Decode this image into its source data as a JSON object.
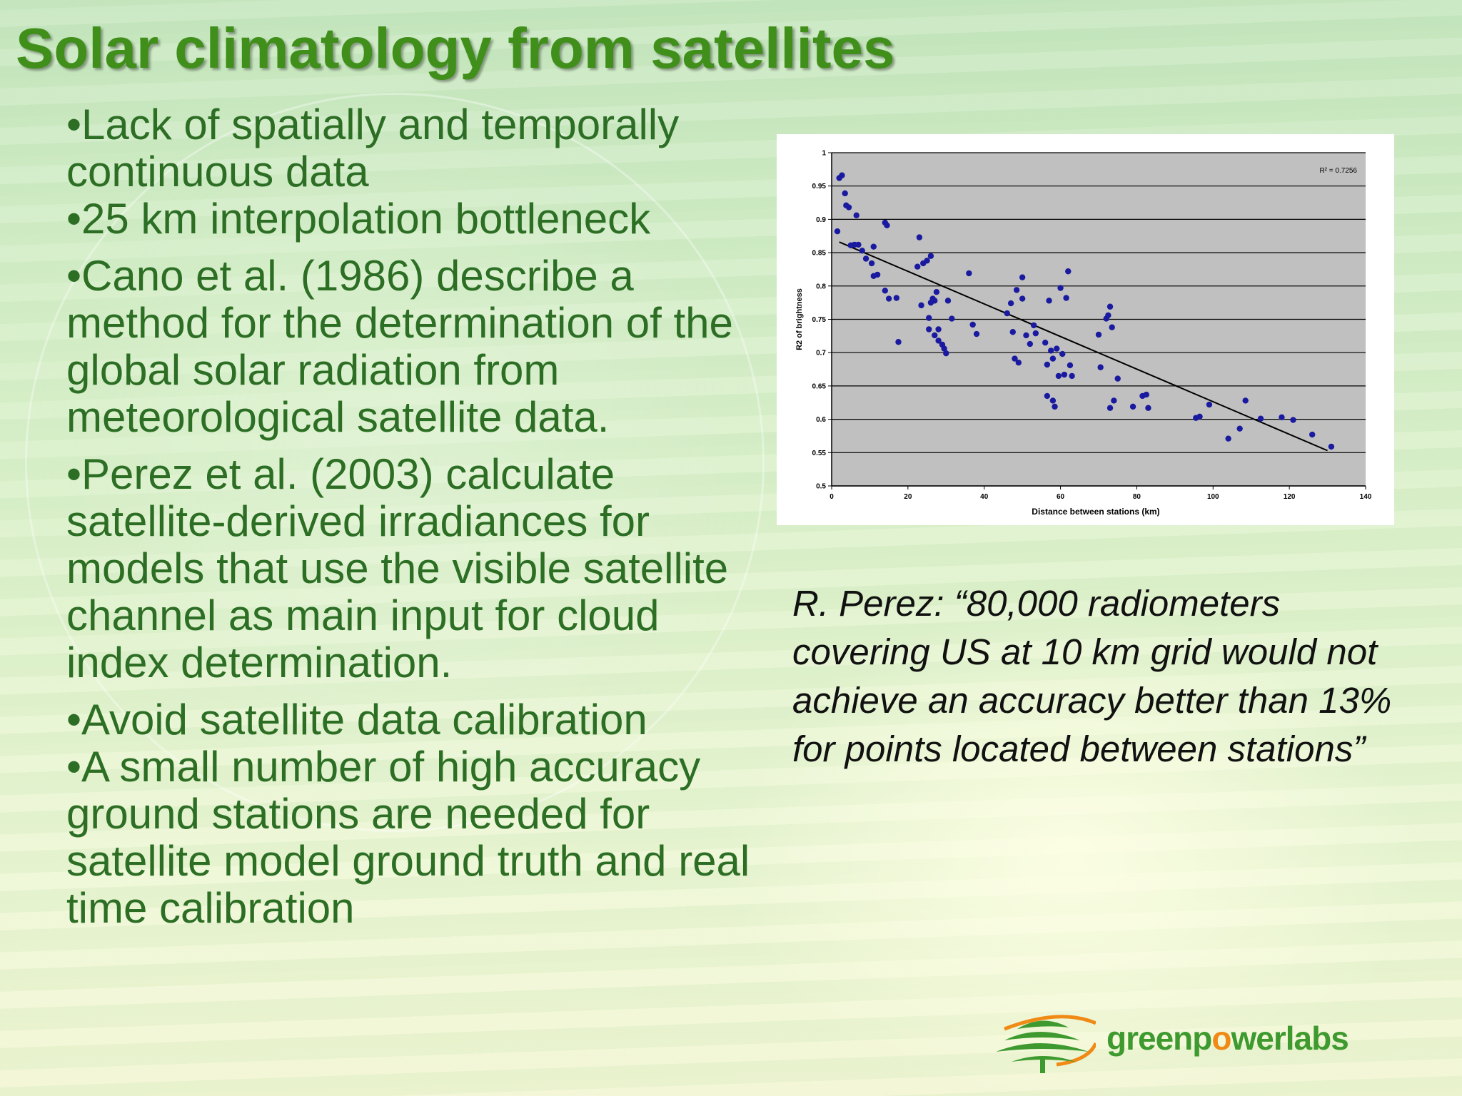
{
  "slide": {
    "title": "Solar climatology from satellites",
    "bullets": [
      "•Lack of spatially and temporally continuous data",
      "•25 km interpolation bottleneck",
      "•Cano et al. (1986) describe a method for the determination of the global solar radiation from meteorological satellite data.",
      "•Perez et al. (2003) calculate satellite-derived irradiances for models that use the visible satellite channel as main input for cloud index determination.",
      "•Avoid satellite data calibration",
      "•A small number of high accuracy ground stations are needed for satellite model ground truth and real time calibration"
    ],
    "quote": "R. Perez: “80,000 radiometers covering US at 10 km grid would not achieve an accuracy better than 13% for points located between stations”",
    "logo": {
      "part1": "greenp",
      "o": "o",
      "part2": "werlabs",
      "icon": "cedar-tree-logo-icon",
      "colors": {
        "green": "#3e9a2f",
        "orange": "#f08a16"
      }
    }
  },
  "chart_data": {
    "type": "scatter",
    "xlabel": "Distance between stations (km)",
    "ylabel": "R2 of brightness",
    "xlim": [
      0,
      140
    ],
    "ylim": [
      0.5,
      1
    ],
    "xticks": [
      "0",
      "20",
      "40",
      "60",
      "80",
      "100",
      "120",
      "140"
    ],
    "yticks": [
      "0.5",
      "0.55",
      "0.6",
      "0.65",
      "0.7",
      "0.75",
      "0.8",
      "0.85",
      "0.9",
      "0.95",
      "1"
    ],
    "annotation": "R² = 0.7256",
    "grid": true,
    "plot_bg": "#c0c0c0",
    "marker_color": "#1a1aa0",
    "trendline": {
      "x": [
        2,
        130
      ],
      "y": [
        0.866,
        0.553
      ]
    },
    "points": [
      [
        1.5,
        0.882
      ],
      [
        2,
        0.962
      ],
      [
        2.7,
        0.966
      ],
      [
        3.5,
        0.939
      ],
      [
        3.8,
        0.921
      ],
      [
        4.5,
        0.918
      ],
      [
        5,
        0.861
      ],
      [
        6,
        0.862
      ],
      [
        6.5,
        0.906
      ],
      [
        7,
        0.862
      ],
      [
        8,
        0.853
      ],
      [
        9,
        0.841
      ],
      [
        11,
        0.859
      ],
      [
        10.5,
        0.834
      ],
      [
        11,
        0.815
      ],
      [
        12,
        0.817
      ],
      [
        14,
        0.895
      ],
      [
        14.5,
        0.891
      ],
      [
        14,
        0.793
      ],
      [
        15,
        0.781
      ],
      [
        17,
        0.782
      ],
      [
        17.5,
        0.716
      ],
      [
        22.5,
        0.829
      ],
      [
        23,
        0.873
      ],
      [
        23.5,
        0.771
      ],
      [
        24,
        0.834
      ],
      [
        25,
        0.838
      ],
      [
        25.5,
        0.752
      ],
      [
        25.5,
        0.735
      ],
      [
        26,
        0.845
      ],
      [
        26,
        0.775
      ],
      [
        26.5,
        0.781
      ],
      [
        27,
        0.778
      ],
      [
        27.5,
        0.791
      ],
      [
        27,
        0.726
      ],
      [
        28,
        0.735
      ],
      [
        28,
        0.718
      ],
      [
        29,
        0.712
      ],
      [
        29.5,
        0.706
      ],
      [
        30,
        0.699
      ],
      [
        30.5,
        0.778
      ],
      [
        31.5,
        0.751
      ],
      [
        36,
        0.819
      ],
      [
        37,
        0.742
      ],
      [
        38,
        0.728
      ],
      [
        46,
        0.759
      ],
      [
        47,
        0.774
      ],
      [
        47.5,
        0.731
      ],
      [
        48,
        0.691
      ],
      [
        48.5,
        0.794
      ],
      [
        49,
        0.685
      ],
      [
        50,
        0.813
      ],
      [
        50,
        0.781
      ],
      [
        51,
        0.726
      ],
      [
        52,
        0.713
      ],
      [
        53,
        0.741
      ],
      [
        53.5,
        0.729
      ],
      [
        56,
        0.715
      ],
      [
        56.5,
        0.682
      ],
      [
        57,
        0.778
      ],
      [
        57.5,
        0.703
      ],
      [
        56.5,
        0.635
      ],
      [
        58,
        0.691
      ],
      [
        58,
        0.628
      ],
      [
        58.5,
        0.619
      ],
      [
        59,
        0.706
      ],
      [
        59.5,
        0.665
      ],
      [
        60,
        0.797
      ],
      [
        60.5,
        0.698
      ],
      [
        61,
        0.667
      ],
      [
        61.5,
        0.782
      ],
      [
        62,
        0.822
      ],
      [
        62.5,
        0.681
      ],
      [
        63,
        0.665
      ],
      [
        70,
        0.727
      ],
      [
        70.5,
        0.678
      ],
      [
        72,
        0.751
      ],
      [
        72.5,
        0.756
      ],
      [
        73,
        0.769
      ],
      [
        73.5,
        0.738
      ],
      [
        73,
        0.617
      ],
      [
        74,
        0.628
      ],
      [
        75,
        0.661
      ],
      [
        79,
        0.619
      ],
      [
        81.5,
        0.635
      ],
      [
        82.5,
        0.637
      ],
      [
        83,
        0.617
      ],
      [
        95.5,
        0.602
      ],
      [
        96.5,
        0.604
      ],
      [
        99,
        0.622
      ],
      [
        104,
        0.571
      ],
      [
        107,
        0.586
      ],
      [
        108.5,
        0.628
      ],
      [
        112.5,
        0.601
      ],
      [
        118,
        0.603
      ],
      [
        121,
        0.599
      ],
      [
        126,
        0.577
      ],
      [
        131,
        0.559
      ]
    ]
  }
}
